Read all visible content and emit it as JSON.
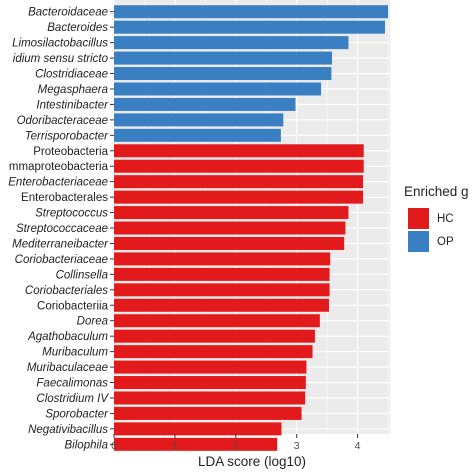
{
  "chart_data": {
    "type": "bar",
    "orientation": "horizontal",
    "xlabel": "LDA score (log10)",
    "xlim": [
      0,
      4.5
    ],
    "xticks": [
      0,
      1,
      2,
      3,
      4
    ],
    "grid": true,
    "legend": {
      "title": "Enriched g",
      "placement": "right",
      "entries": [
        {
          "label": "HC",
          "color": "#e31a1c"
        },
        {
          "label": "OP",
          "color": "#3a7fc1"
        }
      ]
    },
    "bars": [
      {
        "label": "Bacteroidaceae",
        "value": 4.5,
        "group": "OP",
        "italic": true
      },
      {
        "label": "Bacteroides",
        "value": 4.45,
        "group": "OP",
        "italic": true
      },
      {
        "label": "Limosilactobacillus",
        "value": 3.85,
        "group": "OP",
        "italic": true
      },
      {
        "label": "idium sensu stricto",
        "value": 3.58,
        "group": "OP",
        "italic": true
      },
      {
        "label": "Clostridiaceae",
        "value": 3.57,
        "group": "OP",
        "italic": true
      },
      {
        "label": "Megasphaera",
        "value": 3.4,
        "group": "OP",
        "italic": true
      },
      {
        "label": "Intestinibacter",
        "value": 2.98,
        "group": "OP",
        "italic": true
      },
      {
        "label": "Odoribacteraceae",
        "value": 2.78,
        "group": "OP",
        "italic": true
      },
      {
        "label": "Terrisporobacter",
        "value": 2.74,
        "group": "OP",
        "italic": true
      },
      {
        "label": "Proteobacteria",
        "value": 4.1,
        "group": "HC",
        "italic": false
      },
      {
        "label": "mmaproteobacteria",
        "value": 4.1,
        "group": "HC",
        "italic": false
      },
      {
        "label": "Enterobacteriaceae",
        "value": 4.09,
        "group": "HC",
        "italic": true
      },
      {
        "label": "Enterobacterales",
        "value": 4.09,
        "group": "HC",
        "italic": false
      },
      {
        "label": "Streptococcus",
        "value": 3.85,
        "group": "HC",
        "italic": true
      },
      {
        "label": "Streptococcaceae",
        "value": 3.8,
        "group": "HC",
        "italic": true
      },
      {
        "label": "Mediterraneibacter",
        "value": 3.78,
        "group": "HC",
        "italic": true
      },
      {
        "label": "Coriobacteriaceae",
        "value": 3.55,
        "group": "HC",
        "italic": true
      },
      {
        "label": "Collinsella",
        "value": 3.54,
        "group": "HC",
        "italic": true
      },
      {
        "label": "Coriobacteriales",
        "value": 3.54,
        "group": "HC",
        "italic": true
      },
      {
        "label": "Coriobacteriia",
        "value": 3.53,
        "group": "HC",
        "italic": false
      },
      {
        "label": "Dorea",
        "value": 3.38,
        "group": "HC",
        "italic": true
      },
      {
        "label": "Agathobaculum",
        "value": 3.3,
        "group": "HC",
        "italic": true
      },
      {
        "label": "Muribaculum",
        "value": 3.26,
        "group": "HC",
        "italic": true
      },
      {
        "label": "Muribaculaceae",
        "value": 3.16,
        "group": "HC",
        "italic": true
      },
      {
        "label": "Faecalimonas",
        "value": 3.15,
        "group": "HC",
        "italic": true
      },
      {
        "label": "Clostridium IV",
        "value": 3.14,
        "group": "HC",
        "italic": true
      },
      {
        "label": "Sporobacter",
        "value": 3.08,
        "group": "HC",
        "italic": true
      },
      {
        "label": "Negativibacillus",
        "value": 2.75,
        "group": "HC",
        "italic": true
      },
      {
        "label": "Bilophila",
        "value": 2.68,
        "group": "HC",
        "italic": true
      }
    ]
  }
}
